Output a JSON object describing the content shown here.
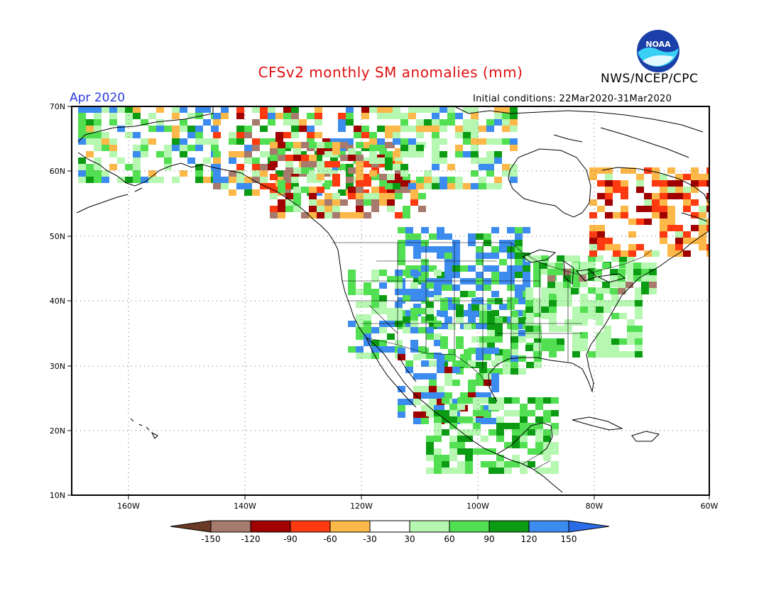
{
  "title": "CFSv2 monthly SM anomalies (mm)",
  "organization": "NWS/NCEP/CPC",
  "logo_text": "NOAA",
  "valid_month": "Apr 2020",
  "initial_conditions": "Initial conditions: 22Mar2020-31Mar2020",
  "axes": {
    "lat_labels": [
      "70N",
      "60N",
      "50N",
      "40N",
      "30N",
      "20N",
      "10N"
    ],
    "lon_labels": [
      "160W",
      "140W",
      "120W",
      "100W",
      "80W",
      "60W"
    ]
  },
  "legend": {
    "labels": [
      "-150",
      "-120",
      "-90",
      "-60",
      "-30",
      "30",
      "60",
      "90",
      "120",
      "150"
    ],
    "colors": [
      "#6b3a26",
      "#a67a6c",
      "#a00000",
      "#ff3a10",
      "#fcb848",
      "#ffffff",
      "#b6f7b2",
      "#52e052",
      "#0c9c14",
      "#3c8cf0",
      "#2c6ce8"
    ]
  },
  "colors": {
    "title": "#e01010",
    "month": "#2a3ad8",
    "noaa_blue": "#1a3fa8",
    "noaa_cyan": "#38d0f4"
  }
}
